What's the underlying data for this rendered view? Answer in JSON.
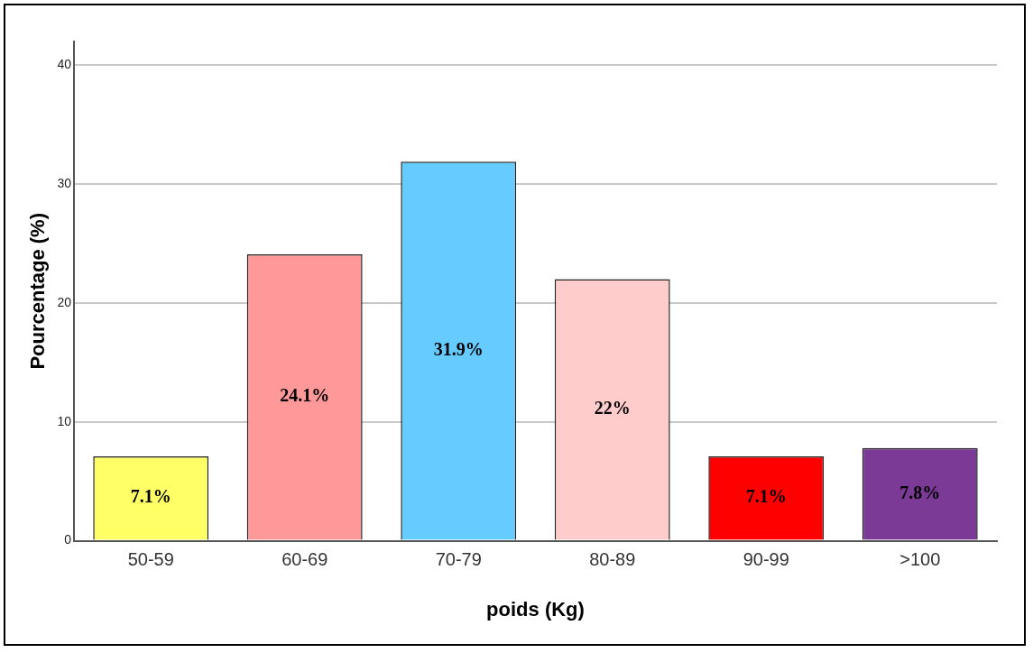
{
  "chart_data": {
    "type": "bar",
    "xlabel": "poids (Kg)",
    "ylabel": "Pourcentage (%)",
    "categories": [
      "50-59",
      "60-69",
      "70-79",
      "80-89",
      "90-99",
      ">100"
    ],
    "values": [
      7.1,
      24.1,
      31.9,
      22,
      7.1,
      7.8
    ],
    "colors": [
      "#ffff66",
      "#ff9999",
      "#66ccff",
      "#ffcccc",
      "#ff0000",
      "#7b3a96"
    ],
    "value_labels": [
      "7.1%",
      "24.1%",
      "31.9%",
      "22%",
      "7.1%",
      "7.8%"
    ],
    "ylim": [
      0,
      42
    ],
    "yticks": [
      0,
      10,
      20,
      30,
      40
    ],
    "grid": "y",
    "legend": false
  }
}
